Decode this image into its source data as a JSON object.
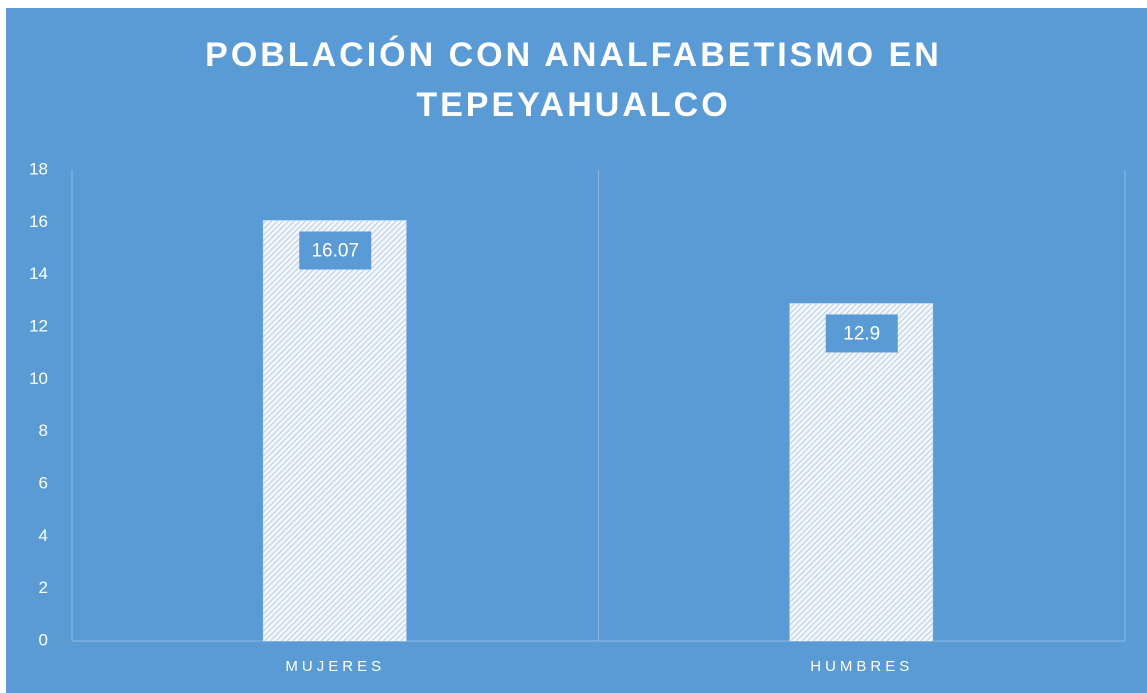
{
  "chart_data": {
    "type": "bar",
    "title": "POBLACIÓN CON ANALFABETISMO EN TEPEYAHUALCO",
    "categories": [
      "MUJERES",
      "HUMBRES"
    ],
    "values": [
      16.07,
      12.9
    ],
    "color": "#ffffff",
    "ylim": [
      0,
      18
    ],
    "yticks": [
      0,
      2,
      4,
      6,
      8,
      10,
      12,
      14,
      16,
      18
    ],
    "grid": false
  }
}
